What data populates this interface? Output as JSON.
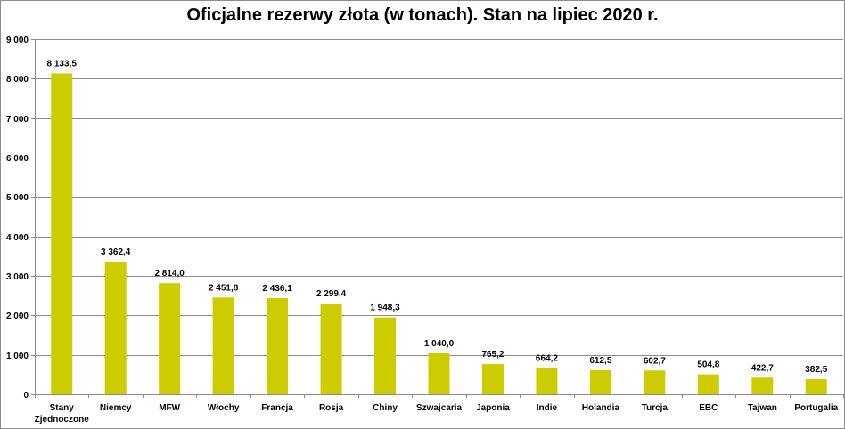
{
  "chart_data": {
    "type": "bar",
    "title": "Oficjalne rezerwy złota (w tonach). Stan na lipiec 2020 r.",
    "categories": [
      [
        "Stany",
        "Zjednoczone"
      ],
      [
        "Niemcy"
      ],
      [
        "MFW"
      ],
      [
        "Włochy"
      ],
      [
        "Francja"
      ],
      [
        "Rosja"
      ],
      [
        "Chiny"
      ],
      [
        "Szwajcaria"
      ],
      [
        "Japonia"
      ],
      [
        "Indie"
      ],
      [
        "Holandia"
      ],
      [
        "Turcja"
      ],
      [
        "EBC"
      ],
      [
        "Tajwan"
      ],
      [
        "Portugalia"
      ]
    ],
    "values": [
      8133.5,
      3362.4,
      2814.0,
      2451.8,
      2436.1,
      2299.4,
      1948.3,
      1040.0,
      765.2,
      664.2,
      612.5,
      602.7,
      504.8,
      422.7,
      382.5
    ],
    "data_labels": [
      "8 133,5",
      "3 362,4",
      "2 814,0",
      "2 451,8",
      "2 436,1",
      "2 299,4",
      "1 948,3",
      "1 040,0",
      "765,2",
      "664,2",
      "612,5",
      "602,7",
      "504,8",
      "422,7",
      "382,5"
    ],
    "yticks": [
      0,
      1000,
      2000,
      3000,
      4000,
      5000,
      6000,
      7000,
      8000,
      9000
    ],
    "ytick_labels": [
      "0",
      "1 000",
      "2 000",
      "3 000",
      "4 000",
      "5 000",
      "6 000",
      "7 000",
      "8 000",
      "9 000"
    ],
    "ylim": [
      0,
      9000
    ],
    "xlabel": "",
    "ylabel": "",
    "grid": true,
    "legend": "none",
    "colors": {
      "bar": "#cccc00",
      "grid": "#8c8c8c",
      "axis": "#8c8c8c"
    }
  }
}
